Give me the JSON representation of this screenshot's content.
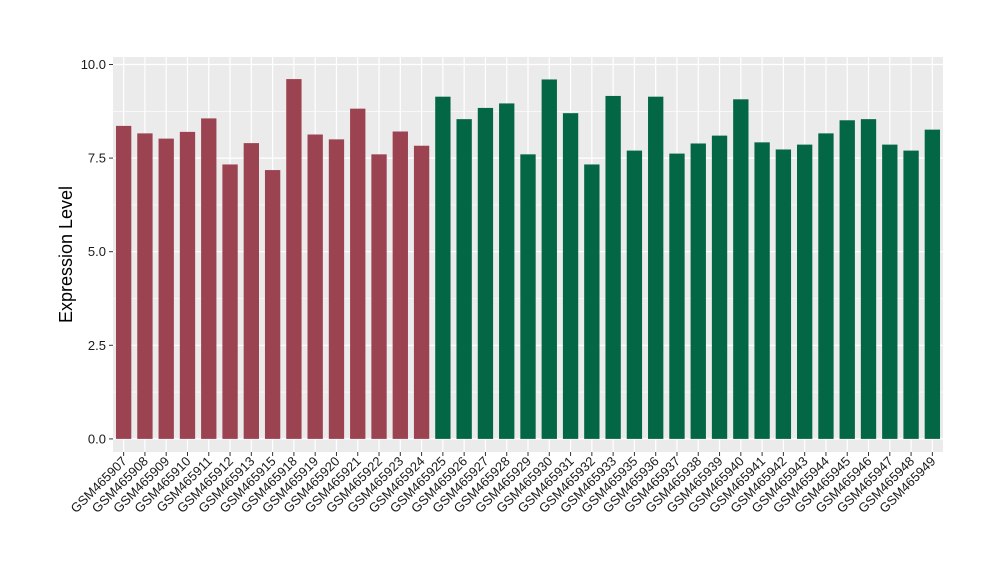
{
  "chart_data": {
    "type": "bar",
    "ylabel": "Expression Level",
    "xlabel": "",
    "ylim": [
      -0.35,
      10.2
    ],
    "yticks": [
      0.0,
      2.5,
      5.0,
      7.5,
      10.0
    ],
    "ytick_labels": [
      "0.0",
      "2.5",
      "5.0",
      "7.5",
      "10.0"
    ],
    "grid": true,
    "legend": "none",
    "colors": {
      "group1": "#9b4350",
      "group2": "#036644",
      "panel": "#ebebeb",
      "grid": "#ffffff"
    },
    "categories": [
      "GSM465907",
      "GSM465908",
      "GSM465909",
      "GSM465910",
      "GSM465911",
      "GSM465912",
      "GSM465913",
      "GSM465915",
      "GSM465918",
      "GSM465919",
      "GSM465920",
      "GSM465921",
      "GSM465922",
      "GSM465923",
      "GSM465924",
      "GSM465925",
      "GSM465926",
      "GSM465927",
      "GSM465928",
      "GSM465929",
      "GSM465930",
      "GSM465931",
      "GSM465932",
      "GSM465933",
      "GSM465935",
      "GSM465936",
      "GSM465937",
      "GSM465938",
      "GSM465939",
      "GSM465940",
      "GSM465941",
      "GSM465942",
      "GSM465943",
      "GSM465944",
      "GSM465945",
      "GSM465946",
      "GSM465947",
      "GSM465948",
      "GSM465949"
    ],
    "values": [
      8.36,
      8.16,
      8.02,
      8.2,
      8.56,
      7.33,
      7.9,
      7.18,
      9.61,
      8.13,
      8.0,
      8.82,
      7.6,
      8.21,
      7.83,
      9.14,
      8.54,
      8.84,
      8.96,
      7.6,
      9.6,
      8.7,
      7.33,
      9.16,
      7.7,
      9.14,
      7.62,
      7.89,
      8.1,
      9.07,
      7.92,
      7.73,
      7.86,
      8.16,
      8.51,
      8.54,
      7.86,
      7.7,
      8.26
    ],
    "groups": [
      1,
      1,
      1,
      1,
      1,
      1,
      1,
      1,
      1,
      1,
      1,
      1,
      1,
      1,
      1,
      2,
      2,
      2,
      2,
      2,
      2,
      2,
      2,
      2,
      2,
      2,
      2,
      2,
      2,
      2,
      2,
      2,
      2,
      2,
      2,
      2,
      2,
      2,
      2
    ]
  }
}
